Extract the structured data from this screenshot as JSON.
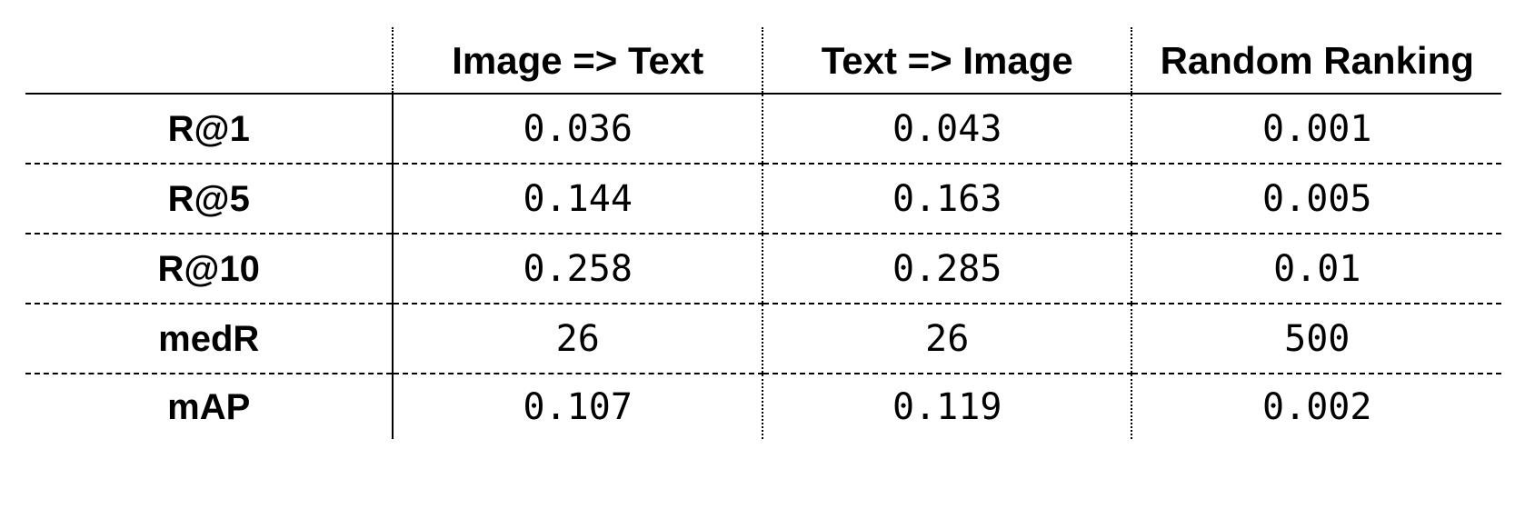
{
  "table": {
    "corner": "",
    "columns": [
      "Image => Text",
      "Text => Image",
      "Random Ranking"
    ],
    "rows": [
      {
        "label": "R@1",
        "values": [
          "0.036",
          "0.043",
          "0.001"
        ]
      },
      {
        "label": "R@5",
        "values": [
          "0.144",
          "0.163",
          "0.005"
        ]
      },
      {
        "label": "R@10",
        "values": [
          "0.258",
          "0.285",
          "0.01"
        ]
      },
      {
        "label": "medR",
        "values": [
          "26",
          "26",
          "500"
        ]
      },
      {
        "label": "mAP",
        "values": [
          "0.107",
          "0.119",
          "0.002"
        ]
      }
    ]
  }
}
